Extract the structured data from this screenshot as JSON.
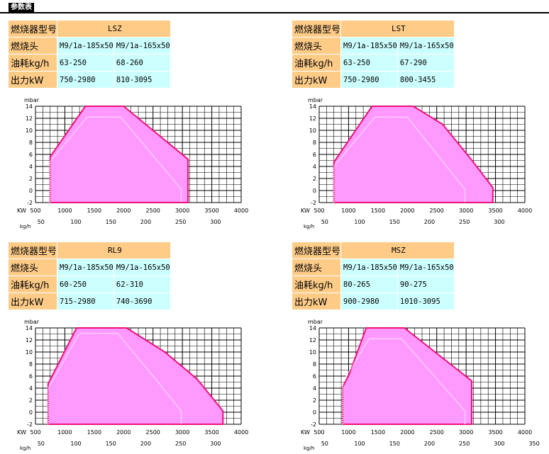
{
  "header": {
    "title": "参数表"
  },
  "panels": [
    {
      "id": "lsz",
      "table": {
        "rows": [
          {
            "label": "燃烧器型号",
            "model": "LSZ"
          },
          {
            "label": "燃烧头",
            "values": [
              "M9/1a-185x50",
              "M9/1a-165x50"
            ]
          },
          {
            "label": "油耗kg/h",
            "values": [
              "63-250",
              "68-260"
            ]
          },
          {
            "label": "出力kW",
            "values": [
              "750-2980",
              "810-3095"
            ]
          }
        ]
      },
      "chart_data": {
        "type": "area",
        "ylabel": "mbar",
        "xlabel": "KW",
        "x2label": "kg/h",
        "x_ticks": [
          500,
          1000,
          1500,
          2000,
          2500,
          3000,
          3500,
          4000
        ],
        "x2_ticks": [
          50,
          100,
          150,
          200,
          250,
          300
        ],
        "y_ticks": [
          14,
          12,
          10,
          8,
          6,
          4,
          2,
          0,
          -2
        ],
        "xlim": [
          500,
          4000
        ],
        "ylim": [
          -2,
          14
        ],
        "series": [
          {
            "values": [
              [
                750,
                -2
              ],
              [
                750,
                5.6
              ],
              [
                1350,
                14
              ],
              [
                2000,
                14
              ],
              [
                3095,
                5.2
              ],
              [
                3095,
                -2
              ]
            ],
            "style": "area"
          },
          {
            "values": [
              [
                750,
                -2
              ],
              [
                750,
                4.8
              ],
              [
                1380,
                12.2
              ],
              [
                1950,
                12.2
              ],
              [
                2980,
                0.2
              ],
              [
                2980,
                -2
              ]
            ],
            "style": "dotted"
          }
        ]
      }
    },
    {
      "id": "lst",
      "table": {
        "rows": [
          {
            "label": "燃烧器型号",
            "model": "LST"
          },
          {
            "label": "燃烧头",
            "values": [
              "M9/1a-185x50",
              "M9/1a-165x50"
            ]
          },
          {
            "label": "油耗kg/h",
            "values": [
              "63-250",
              "67-290"
            ]
          },
          {
            "label": "出力kW",
            "values": [
              "750-2980",
              "800-3455"
            ]
          }
        ]
      },
      "chart_data": {
        "type": "area",
        "ylabel": "mbar",
        "xlabel": "KW",
        "x2label": "kg/h",
        "x_ticks": [
          500,
          1000,
          1500,
          2000,
          2500,
          3000,
          3500,
          4000
        ],
        "x2_ticks": [
          50,
          100,
          150,
          200,
          250,
          300
        ],
        "y_ticks": [
          14,
          12,
          10,
          8,
          6,
          4,
          2,
          0,
          -2
        ],
        "xlim": [
          500,
          4000
        ],
        "ylim": [
          -2,
          14
        ],
        "series": [
          {
            "values": [
              [
                750,
                -2
              ],
              [
                750,
                4.7
              ],
              [
                1400,
                14
              ],
              [
                2100,
                14
              ],
              [
                2600,
                11
              ],
              [
                3100,
                5
              ],
              [
                3455,
                0.5
              ],
              [
                3455,
                -2
              ]
            ],
            "style": "area"
          },
          {
            "values": [
              [
                750,
                -2
              ],
              [
                750,
                4
              ],
              [
                1450,
                12.2
              ],
              [
                2000,
                12.2
              ],
              [
                2980,
                0.2
              ],
              [
                2980,
                -2
              ]
            ],
            "style": "dotted"
          }
        ]
      }
    },
    {
      "id": "rl9",
      "table": {
        "rows": [
          {
            "label": "燃烧器型号",
            "model": "RL9"
          },
          {
            "label": "燃烧头",
            "values": [
              "M9/1a-185x50",
              "M9/1a-165x50"
            ]
          },
          {
            "label": "油耗kg/h",
            "values": [
              "60-250",
              "62-310"
            ]
          },
          {
            "label": "出力kW",
            "values": [
              "715-2980",
              "740-3690"
            ]
          }
        ]
      },
      "chart_data": {
        "type": "area",
        "ylabel": "mbar",
        "xlabel": "KW",
        "x2label": "kg/h",
        "x_ticks": [
          500,
          1000,
          1500,
          2000,
          2500,
          3000,
          3500,
          4000
        ],
        "x2_ticks": [
          50,
          100,
          150,
          200,
          250,
          300
        ],
        "y_ticks": [
          14,
          12,
          10,
          8,
          6,
          4,
          2,
          0,
          -2
        ],
        "xlim": [
          500,
          4000
        ],
        "ylim": [
          -2,
          14
        ],
        "series": [
          {
            "values": [
              [
                715,
                -2
              ],
              [
                715,
                4.7
              ],
              [
                1200,
                14
              ],
              [
                2050,
                14
              ],
              [
                2700,
                10
              ],
              [
                3250,
                5.5
              ],
              [
                3690,
                0.2
              ],
              [
                3690,
                -2
              ]
            ],
            "style": "area"
          },
          {
            "values": [
              [
                715,
                -2
              ],
              [
                715,
                4
              ],
              [
                1250,
                13.1
              ],
              [
                1900,
                13.1
              ],
              [
                2500,
                6
              ],
              [
                2980,
                0.2
              ],
              [
                2980,
                -2
              ]
            ],
            "style": "dotted"
          }
        ]
      }
    },
    {
      "id": "msz",
      "table": {
        "rows": [
          {
            "label": "燃烧器型号",
            "model": "MSZ"
          },
          {
            "label": "燃烧头",
            "values": [
              "M9/1a-185x50",
              "M9/1a-165x50"
            ]
          },
          {
            "label": "油耗kg/h",
            "values": [
              "80-265",
              "90-275"
            ]
          },
          {
            "label": "出力kW",
            "values": [
              "900-2980",
              "1010-3095"
            ]
          }
        ]
      },
      "chart_data": {
        "type": "area",
        "ylabel": "mbar",
        "xlabel": "KW",
        "x2label": "kg/h",
        "x_ticks": [
          500,
          1000,
          1500,
          2000,
          2500,
          3000,
          3500,
          4000
        ],
        "x2_ticks": [
          50,
          100,
          150,
          200,
          250,
          300,
          350
        ],
        "y_ticks": [
          14,
          12,
          10,
          8,
          6,
          4,
          2,
          0,
          -2
        ],
        "xlim": [
          500,
          4000
        ],
        "ylim": [
          -2,
          14
        ],
        "series": [
          {
            "values": [
              [
                900,
                -2
              ],
              [
                900,
                4.2
              ],
              [
                1010,
                6.3
              ],
              [
                1300,
                14
              ],
              [
                1950,
                14
              ],
              [
                3095,
                5.2
              ],
              [
                3095,
                -2
              ]
            ],
            "style": "area"
          },
          {
            "values": [
              [
                900,
                -2
              ],
              [
                900,
                5
              ],
              [
                1350,
                12.2
              ],
              [
                1900,
                12.2
              ],
              [
                2980,
                0.2
              ],
              [
                2980,
                -2
              ]
            ],
            "style": "dotted"
          }
        ]
      }
    }
  ]
}
